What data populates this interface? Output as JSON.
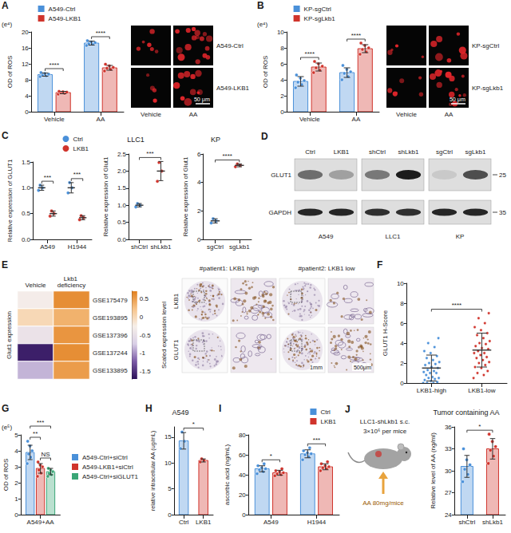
{
  "chart_data": [
    {
      "panel": "A",
      "type": "bar",
      "ylabel": "OD of ROS",
      "y_unit": "(e⁴)",
      "categories": [
        "Vehicle",
        "AA"
      ],
      "series": [
        {
          "name": "A549-Ctrl",
          "color": "#4a90d9",
          "values": [
            9.3,
            17.2
          ],
          "errors": [
            0.4,
            0.5
          ],
          "points": [
            [
              8.8,
              9.0,
              9.2,
              9.4,
              9.6,
              9.8
            ],
            [
              16.6,
              16.9,
              17.1,
              17.3,
              17.5,
              17.8
            ]
          ]
        },
        {
          "name": "A549-LKB1",
          "color": "#d0342c",
          "values": [
            4.8,
            11.0
          ],
          "errors": [
            0.3,
            0.6
          ],
          "points": [
            [
              4.4,
              4.6,
              4.7,
              4.9,
              5.0,
              5.1
            ],
            [
              10.2,
              10.6,
              10.9,
              11.1,
              11.5,
              11.9
            ]
          ]
        }
      ],
      "ylim": [
        0,
        20
      ],
      "yticks": [
        0,
        4,
        8,
        12,
        16,
        20
      ],
      "legend": "top-left",
      "annotations": [
        {
          "text": "****",
          "from": {
            "category": "Vehicle",
            "series": "A549-Ctrl"
          },
          "to": {
            "category": "Vehicle",
            "series": "A549-LKB1"
          }
        },
        {
          "text": "****",
          "from": {
            "category": "AA",
            "series": "A549-Ctrl"
          },
          "to": {
            "category": "AA",
            "series": "A549-LKB1"
          }
        }
      ]
    },
    {
      "panel": "B",
      "type": "bar",
      "ylabel": "OD of ROS",
      "y_unit": "(e⁴)",
      "categories": [
        "Vehicle",
        "AA"
      ],
      "series": [
        {
          "name": "KP-sgCtrl",
          "color": "#4a90d9",
          "values": [
            3.8,
            4.9
          ],
          "errors": [
            0.6,
            0.6
          ],
          "points": [
            [
              3.0,
              3.4,
              3.7,
              3.9,
              4.2,
              4.6
            ],
            [
              4.0,
              4.4,
              4.8,
              5.0,
              5.3,
              5.8
            ]
          ]
        },
        {
          "name": "KP-sgLkb1",
          "color": "#d0342c",
          "values": [
            5.6,
            7.9
          ],
          "errors": [
            0.5,
            0.5
          ],
          "points": [
            [
              4.9,
              5.2,
              5.5,
              5.7,
              6.0,
              6.3
            ],
            [
              7.2,
              7.5,
              7.8,
              8.0,
              8.3,
              8.6
            ]
          ]
        }
      ],
      "ylim": [
        0,
        10
      ],
      "yticks": [
        0,
        2,
        4,
        6,
        8,
        10
      ],
      "legend": "top-left",
      "annotations": [
        {
          "text": "****",
          "from": {
            "category": "Vehicle",
            "series": "KP-sgCtrl"
          },
          "to": {
            "category": "Vehicle",
            "series": "KP-sgLkb1"
          }
        },
        {
          "text": "****",
          "from": {
            "category": "AA",
            "series": "KP-sgCtrl"
          },
          "to": {
            "category": "AA",
            "series": "KP-sgLkb1"
          }
        }
      ]
    },
    {
      "panel": "C",
      "type": "dot",
      "ylabel": "Relative expression of GLUT1",
      "categories": [
        "A549",
        "H1944"
      ],
      "series": [
        {
          "name": "Ctrl",
          "color": "#4a90d9",
          "values": [
            1.0,
            1.0
          ],
          "errors": [
            0.05,
            0.1
          ],
          "points": [
            [
              0.95,
              1.0,
              1.05
            ],
            [
              0.9,
              1.0,
              1.1
            ]
          ]
        },
        {
          "name": "LKB1",
          "color": "#d0342c",
          "values": [
            0.5,
            0.42
          ],
          "errors": [
            0.05,
            0.04
          ],
          "points": [
            [
              0.45,
              0.5,
              0.55
            ],
            [
              0.38,
              0.42,
              0.46
            ]
          ]
        }
      ],
      "ylim": [
        0,
        1.5
      ],
      "yticks": [
        {
          "value": 0,
          "label": "0.0"
        },
        0.5,
        {
          "value": 1,
          "label": "1.0"
        },
        1.5
      ],
      "legend": "top-right",
      "annotations": [
        {
          "text": "***",
          "from": {
            "category": "A549",
            "series": "Ctrl"
          },
          "to": {
            "category": "A549",
            "series": "LKB1"
          }
        },
        {
          "text": "***",
          "from": {
            "category": "H1944",
            "series": "Ctrl"
          },
          "to": {
            "category": "H1944",
            "series": "LKB1"
          }
        }
      ]
    },
    {
      "type": "dot",
      "title": "LLC1",
      "ylabel": "Relative expression of Glut1",
      "categories": [
        "shCtrl",
        "shLkb1"
      ],
      "series": [
        {
          "colors": [
            "#4a90d9",
            "#d0342c"
          ],
          "values": [
            1.0,
            2.0
          ],
          "errors": [
            0.05,
            0.28
          ],
          "points": [
            [
              0.95,
              1.0,
              1.05
            ],
            [
              1.7,
              2.0,
              2.25
            ]
          ]
        }
      ],
      "ylim": [
        0,
        2.5
      ],
      "yticks": [
        {
          "value": 0,
          "label": "0.0"
        },
        0.5,
        {
          "value": 1,
          "label": "1.0"
        },
        1.5,
        {
          "value": 2,
          "label": "2.0"
        },
        2.5
      ],
      "annotations": [
        {
          "text": "***",
          "from": {
            "category": "shCtrl"
          },
          "to": {
            "category": "shLkb1"
          }
        }
      ]
    },
    {
      "type": "dot",
      "title": "KP",
      "ylabel": "Relative expression of Glut1",
      "categories": [
        "sgCtrl",
        "sgLkb1"
      ],
      "series": [
        {
          "colors": [
            "#4a90d9",
            "#d0342c"
          ],
          "values": [
            1.3,
            5.2
          ],
          "errors": [
            0.15,
            0.1
          ],
          "points": [
            [
              1.15,
              1.3,
              1.45
            ],
            [
              5.1,
              5.2,
              5.3
            ]
          ]
        }
      ],
      "ylim": [
        0,
        6
      ],
      "yticks": [
        0,
        2,
        4,
        6
      ],
      "annotations": [
        {
          "text": "****",
          "from": {
            "category": "sgCtrl"
          },
          "to": {
            "category": "sgLkb1"
          }
        }
      ]
    },
    {
      "panel": "E",
      "type": "heatmap",
      "ylabel": "Glut1 expression",
      "categories": [
        "Vehicle",
        "Lkb1 deficiency"
      ],
      "rows": [
        "GSE175479",
        "GSE193895",
        "GSE137396",
        "GSE137244",
        "GSE133895"
      ],
      "values": [
        [
          -0.3,
          0.6
        ],
        [
          0.0,
          0.35
        ],
        [
          -0.45,
          0.55
        ],
        [
          -1.6,
          0.6
        ],
        [
          -0.85,
          0.5
        ]
      ],
      "colorbar": {
        "label": "Scaled expression level",
        "range": [
          -1.7,
          0.7
        ],
        "ticks": [
          -1.5,
          -1,
          -0.5,
          0,
          0.5
        ]
      }
    },
    {
      "panel": "F",
      "type": "dot",
      "ylabel": "GLUT1 H-Score",
      "categories": [
        "LKB1-high",
        "LKB1-low"
      ],
      "series": [
        {
          "colors": [
            "#4a90d9",
            "#d0342c"
          ],
          "values": [
            1.5,
            3.3
          ],
          "errors": [
            1.3,
            1.7
          ],
          "points": [
            [
              0,
              0,
              0,
              0.1,
              0.2,
              0.3,
              0.4,
              0.5,
              0.5,
              0.6,
              0.8,
              1.0,
              1.0,
              1.1,
              1.2,
              1.3,
              1.5,
              1.6,
              1.8,
              1.9,
              2.0,
              2.1,
              2.3,
              2.5,
              2.7,
              3.0,
              3.2,
              3.6,
              4.0,
              4.5
            ],
            [
              0.5,
              0.8,
              1.0,
              1.2,
              1.5,
              1.6,
              1.8,
              2.0,
              2.1,
              2.3,
              2.5,
              2.6,
              2.8,
              3.0,
              3.0,
              3.2,
              3.4,
              3.5,
              3.7,
              3.9,
              4.0,
              4.2,
              4.5,
              4.8,
              5.0,
              5.3,
              5.6,
              6.0,
              6.5,
              7.0
            ]
          ]
        }
      ],
      "ylim": [
        0,
        10
      ],
      "yticks": [
        0,
        2,
        4,
        6,
        8,
        10
      ],
      "annotations": [
        {
          "text": "****",
          "from": {
            "category": "LKB1-high"
          },
          "to": {
            "category": "LKB1-low"
          }
        }
      ]
    },
    {
      "panel": "G",
      "type": "bar",
      "ylabel": "OD of ROS",
      "y_unit": "(e⁵)",
      "categories": [
        "A549+AA"
      ],
      "series": [
        {
          "name": "A549-Ctrl+siCtrl",
          "color": "#4a90d9",
          "values": [
            3.9
          ],
          "errors": [
            0.45
          ],
          "points": [
            [
              3.2,
              3.6,
              3.8,
              4.0,
              4.3,
              4.6
            ]
          ]
        },
        {
          "name": "A549-LKB1+siCtrl",
          "color": "#d0342c",
          "values": [
            2.9
          ],
          "errors": [
            0.3
          ],
          "points": [
            [
              2.4,
              2.6,
              2.8,
              3.0,
              3.1,
              3.3
            ]
          ]
        },
        {
          "name": "A549-Ctrl+siGLUT1",
          "color": "#3aa676",
          "values": [
            2.7
          ],
          "errors": [
            0.2
          ],
          "points": [
            [
              2.4,
              2.5,
              2.6,
              2.7,
              2.8,
              2.9
            ]
          ]
        }
      ],
      "ylim": [
        0,
        5
      ],
      "yticks": [
        0,
        1,
        2,
        3,
        4,
        5
      ],
      "legend": "right",
      "annotations": [
        {
          "text": "***",
          "from": {
            "category": "A549+AA",
            "series": "A549-Ctrl+siCtrl"
          },
          "to": {
            "category": "A549+AA",
            "series": "A549-Ctrl+siGLUT1"
          }
        },
        {
          "text": "**",
          "from": {
            "category": "A549+AA",
            "series": "A549-Ctrl+siCtrl"
          },
          "to": {
            "category": "A549+AA",
            "series": "A549-LKB1+siCtrl"
          }
        },
        {
          "text": "NS",
          "from": {
            "category": "A549+AA",
            "series": "A549-LKB1+siCtrl"
          },
          "to": {
            "category": "A549+AA",
            "series": "A549-Ctrl+siGLUT1"
          }
        }
      ]
    },
    {
      "panel": "H",
      "type": "bar",
      "title": "A549",
      "ylabel": "relative intracellular AA (ug/mL)",
      "categories": [
        "Ctrl",
        "LKB1"
      ],
      "series": [
        {
          "colors": [
            "#4a90d9",
            "#d0342c"
          ],
          "values": [
            14.3,
            10.5
          ],
          "errors": [
            1.6,
            0.3
          ],
          "points": [
            [
              12.8,
              14.2,
              16.0
            ],
            [
              10.2,
              10.5,
              10.8
            ]
          ]
        }
      ],
      "ylim": [
        0,
        17
      ],
      "yticks": [
        0,
        5,
        10,
        15
      ],
      "annotations": [
        {
          "text": "*",
          "from": {
            "category": "Ctrl"
          },
          "to": {
            "category": "LKB1"
          }
        }
      ]
    },
    {
      "panel": "I",
      "type": "bar",
      "ylabel": "ascorbic acid (ng/mL)",
      "categories": [
        "A549",
        "H1944"
      ],
      "series": [
        {
          "name": "Ctrl",
          "color": "#4a90d9",
          "values": [
            46,
            61
          ],
          "errors": [
            3,
            4
          ],
          "points": [
            [
              41,
              43,
              45,
              46,
              47,
              49,
              51
            ],
            [
              55,
              58,
              60,
              61,
              62,
              64,
              67
            ]
          ]
        },
        {
          "name": "LKB1",
          "color": "#d0342c",
          "values": [
            42,
            48
          ],
          "errors": [
            2.5,
            3
          ],
          "points": [
            [
              39,
              40,
              41,
              42,
              43,
              44,
              46
            ],
            [
              44,
              46,
              47,
              48,
              49,
              51,
              53
            ]
          ]
        }
      ],
      "ylim": [
        0,
        80
      ],
      "yticks": [
        0,
        20,
        40,
        60,
        80
      ],
      "legend": "top-right",
      "annotations": [
        {
          "text": "*",
          "from": {
            "category": "A549",
            "series": "Ctrl"
          },
          "to": {
            "category": "A549",
            "series": "LKB1"
          }
        },
        {
          "text": "***",
          "from": {
            "category": "H1944",
            "series": "Ctrl"
          },
          "to": {
            "category": "H1944",
            "series": "LKB1"
          }
        }
      ]
    },
    {
      "type": "bar",
      "title": "Tumor containing AA",
      "ylabel": "Relative level of AA (ng/ml)",
      "categories": [
        "shCtrl",
        "shLkb1"
      ],
      "series": [
        {
          "colors": [
            "#4a90d9",
            "#d0342c"
          ],
          "values": [
            30.6,
            33.0
          ],
          "errors": [
            1.5,
            1.4
          ],
          "points": [
            [
              28.5,
              29.5,
              30.2,
              30.8,
              31.5,
              33.0
            ],
            [
              31.0,
              32.0,
              32.8,
              33.3,
              34.0,
              35.0
            ]
          ]
        }
      ],
      "ylim": [
        24,
        36
      ],
      "yticks": [
        24,
        27,
        30,
        33,
        36
      ],
      "annotations": [
        {
          "text": "*",
          "from": {
            "category": "shCtrl"
          },
          "to": {
            "category": "shLkb1"
          }
        }
      ]
    }
  ],
  "micrographs": {
    "A": {
      "columns": [
        "Vehicle",
        "AA"
      ],
      "rows": [
        "A549-Ctrl",
        "A549-LKB1"
      ],
      "scale_bar": "50 μm"
    },
    "B": {
      "columns": [
        "Vehicle",
        "AA"
      ],
      "rows": [
        "KP-sgCtrl",
        "KP-sgLkb1"
      ],
      "scale_bar": "50 μm"
    },
    "F": {
      "columns": [
        "#patient1: LKB1 high",
        "#patient2: LKB1 low"
      ],
      "rows": [
        "LKB1",
        "GLUT1"
      ],
      "scale_bars": [
        "1mm",
        "500μm"
      ]
    }
  },
  "western_blot": {
    "panel": "D",
    "groups": [
      {
        "name": "A549",
        "lanes": [
          "Ctrl",
          "LKB1"
        ]
      },
      {
        "name": "LLC1",
        "lanes": [
          "shCtrl",
          "shLkb1"
        ]
      },
      {
        "name": "KP",
        "lanes": [
          "sgCtrl",
          "sgLkb1"
        ]
      }
    ],
    "rows": [
      {
        "name": "GLUT1",
        "kda": 25,
        "band_intensity": [
          0.55,
          0.3,
          0.5,
          0.95,
          0.1,
          0.7
        ]
      },
      {
        "name": "GAPDH",
        "kda": 35,
        "band_intensity": [
          0.9,
          0.9,
          0.85,
          0.85,
          0.9,
          0.9
        ]
      }
    ]
  },
  "diagram": {
    "panel": "J",
    "cells": "LLC1-shLkb1 s.c.",
    "dose": "3×10⁶ per mice",
    "treatment": "AA 80mg/mice"
  }
}
